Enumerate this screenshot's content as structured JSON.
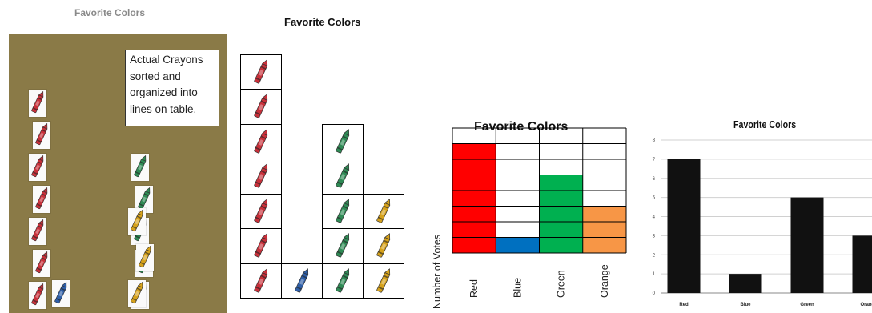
{
  "chart_data": [
    {
      "type": "pictograph",
      "title": "Favorite Colors",
      "note": [
        "Actual Crayons",
        "sorted and",
        "organized into",
        "lines on table."
      ],
      "categories": [
        "Red",
        "Blue",
        "Green",
        "Orange"
      ],
      "values": [
        7,
        1,
        5,
        3
      ],
      "colors": {
        "Red": "#c8303a",
        "Blue": "#2f5fa8",
        "Green": "#2f8a55",
        "Orange": "#d6a21c"
      }
    },
    {
      "type": "pictograph",
      "title": "Favorite Colors",
      "categories": [
        "Red",
        "Blue",
        "Green",
        "Orange"
      ],
      "values": [
        7,
        1,
        5,
        3
      ],
      "colors": {
        "Red": "#c8303a",
        "Blue": "#2f5fa8",
        "Green": "#2f8a55",
        "Orange": "#d6a21c"
      }
    },
    {
      "type": "bar",
      "title": "Favorite Colors",
      "ylabel": "Number of Votes",
      "categories": [
        "Red",
        "Blue",
        "Green",
        "Orange"
      ],
      "values": [
        7,
        1,
        5,
        3
      ],
      "ylim": [
        0,
        8
      ],
      "grid": true,
      "colors": {
        "Red": "#ff0000",
        "Blue": "#0070c0",
        "Green": "#00b050",
        "Orange": "#f79646"
      }
    },
    {
      "type": "bar",
      "title": "Favorite Colors",
      "categories": [
        "Red",
        "Blue",
        "Green",
        "Orange"
      ],
      "values": [
        7,
        1,
        5,
        3
      ],
      "ylim": [
        0,
        8
      ],
      "yticks": [
        0,
        1,
        2,
        3,
        4,
        5,
        6,
        7,
        8
      ],
      "grid": true,
      "bar_color": "#111111"
    }
  ]
}
